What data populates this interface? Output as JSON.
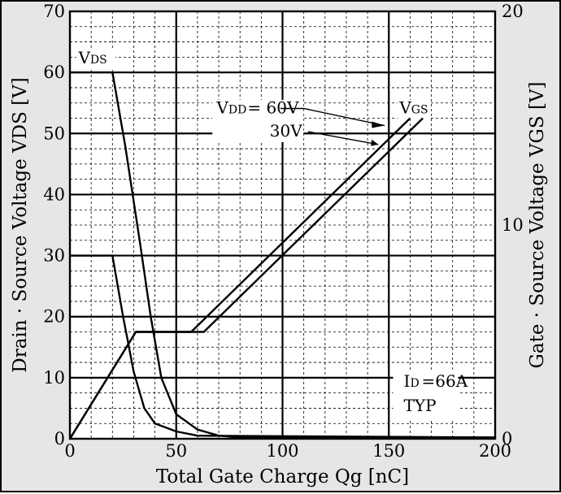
{
  "chart_data": {
    "type": "line",
    "xlabel": "Total Gate Charge  Qg [nC]",
    "ylabel_left": "Drain · Source Voltage  VDS [V]",
    "ylabel_right": "Gate · Source Voltage  VGS [V]",
    "xlim": [
      0,
      200
    ],
    "ylim_left": [
      0,
      70
    ],
    "ylim_right": [
      0,
      20
    ],
    "x_ticks": [
      "0",
      "50",
      "100",
      "150",
      "200"
    ],
    "y_ticks_left": [
      "0",
      "10",
      "20",
      "30",
      "40",
      "50",
      "60",
      "70"
    ],
    "y_ticks_right": [
      "0",
      "10",
      "20"
    ],
    "grid": true,
    "series": [
      {
        "name": "VDS",
        "condition": "60V",
        "axis": "left",
        "x": [
          0,
          20,
          26,
          33,
          38,
          43,
          50,
          60,
          70,
          80,
          200
        ],
        "y": [
          60,
          60,
          48,
          32,
          20,
          10,
          4,
          1.5,
          0.5,
          0.2,
          0.2
        ]
      },
      {
        "name": "VDS",
        "condition": "30V",
        "axis": "left",
        "x": [
          0,
          20,
          25,
          30,
          35,
          40,
          50,
          60,
          200
        ],
        "y": [
          30,
          30,
          20,
          11,
          5,
          2.5,
          1.2,
          0.5,
          0.2
        ]
      },
      {
        "name": "VGS",
        "condition": "60V",
        "axis": "right",
        "x": [
          0,
          31,
          57,
          160
        ],
        "y": [
          0,
          5,
          5,
          15
        ]
      },
      {
        "name": "VGS",
        "condition": "30V",
        "axis": "right",
        "x": [
          0,
          31,
          63,
          166
        ],
        "y": [
          0,
          5,
          5,
          15
        ]
      }
    ],
    "annotations": {
      "vds_label_main": "V",
      "vds_label_sub": "DS",
      "vgs_label_main": "V",
      "vgs_label_sub": "GS",
      "vdd_label_main": "V",
      "vdd_label_sub": "DD",
      "vdd_60": "=  60V",
      "vdd_30": "30V",
      "id_main": "I",
      "id_sub": "D",
      "id_value": "=66A",
      "typ": "TYP"
    }
  }
}
